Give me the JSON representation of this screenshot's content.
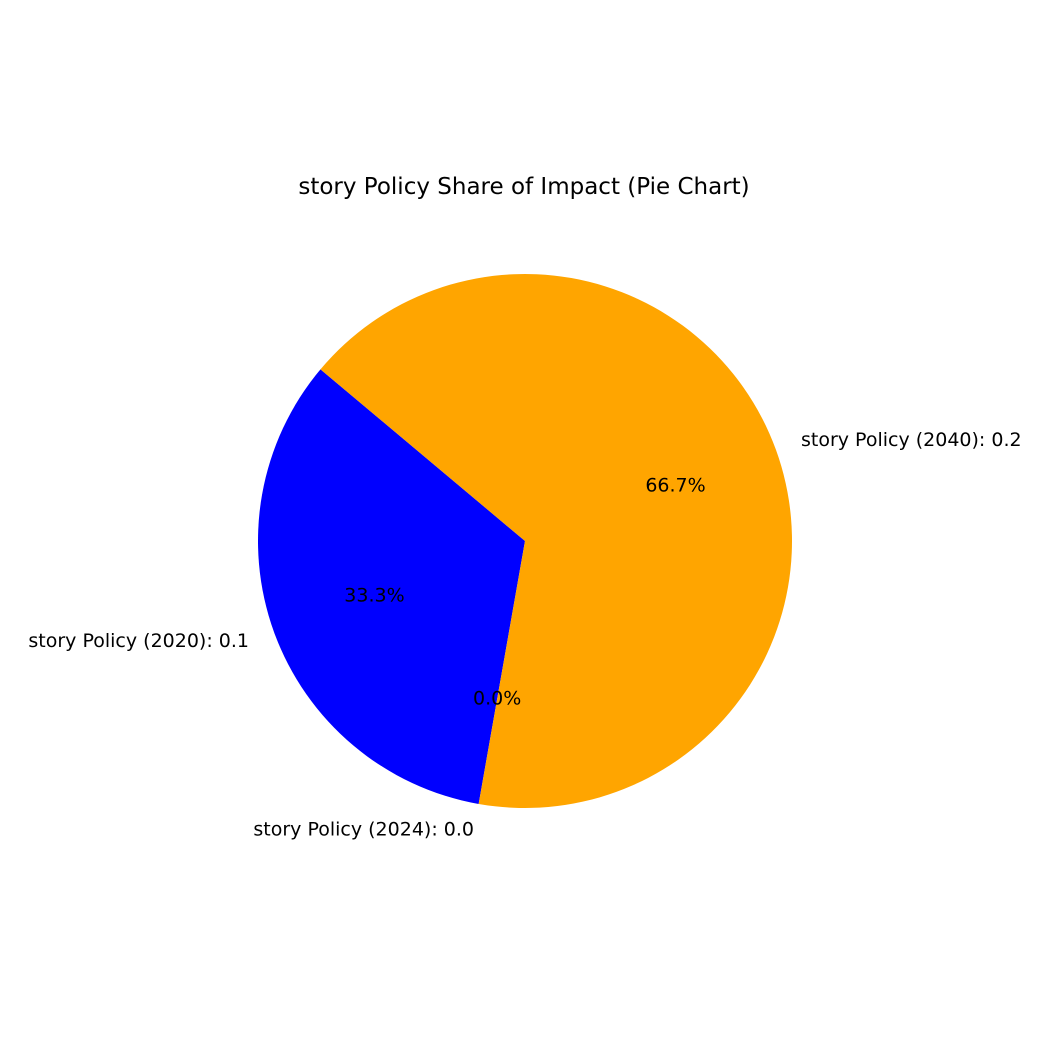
{
  "chart_data": {
    "type": "pie",
    "title": "story Policy Share of Impact (Pie Chart)",
    "start_angle_deg": 140,
    "direction": "counterclockwise",
    "slices": [
      {
        "label": "story Policy (2020): 0.1",
        "value": 0.1,
        "percent_label": "33.3%",
        "color": "#0000ff"
      },
      {
        "label": "story Policy (2024): 0.0",
        "value": 0.0,
        "percent_label": "0.0%",
        "color": "#ff0000"
      },
      {
        "label": "story Policy (2040): 0.2",
        "value": 0.2,
        "percent_label": "66.7%",
        "color": "#ffa500"
      }
    ]
  }
}
